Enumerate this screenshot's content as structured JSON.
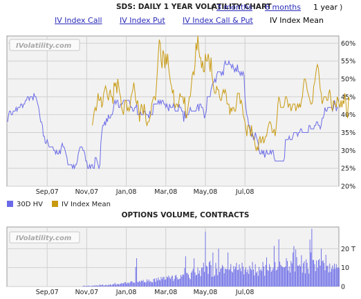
{
  "header": {
    "title": "SDS: DAILY 1 YEAR VOLATILITY CHART",
    "paren_open": "(",
    "paren_close": ")",
    "range_3m": "3 months",
    "range_6m": "6 months",
    "range_1y": "1 year"
  },
  "tabs": {
    "call": "IV Index Call",
    "put": "IV Index Put",
    "callput": "IV Index Call & Put",
    "mean": "IV Index Mean"
  },
  "watermark": "IVolatility.com",
  "colors": {
    "hv": "#6a6ae8",
    "iv": "#c89a10",
    "bar": "#6a6ae8",
    "panel": "#f2f2f2",
    "grid": "#cfcfcf"
  },
  "chart_data": [
    {
      "type": "line",
      "x_tick_labels": [
        "Sep,07",
        "Nov,07",
        "Jan,08",
        "Mar,08",
        "May,08",
        "Jul,08"
      ],
      "y_tick_labels": [
        "20%",
        "25%",
        "30%",
        "35%",
        "40%",
        "45%",
        "50%",
        "55%",
        "60%"
      ],
      "ylim": [
        20,
        62
      ],
      "y_unit": "%",
      "grid": true,
      "legend_position": "bottom-left",
      "series": [
        {
          "name": "30D HV",
          "color": "#6a6ae8",
          "values": [
            38,
            40,
            41,
            41,
            40,
            40,
            41,
            41,
            41,
            42,
            41,
            42,
            42,
            42,
            43,
            43,
            42,
            43,
            43,
            44,
            44,
            45,
            45,
            44,
            45,
            45,
            45,
            44,
            46,
            45,
            45,
            44,
            43,
            42,
            40,
            38,
            38,
            37,
            34,
            34,
            32,
            32,
            33,
            32,
            31,
            31,
            31,
            31,
            31,
            30,
            30,
            29,
            30,
            29,
            29,
            30,
            29,
            31,
            32,
            31,
            31,
            30,
            29,
            28,
            26,
            26,
            26,
            26,
            26,
            25,
            26,
            25,
            26,
            26,
            27,
            29,
            30,
            31,
            31,
            31,
            30,
            30,
            29,
            27,
            27,
            25,
            25,
            26,
            25,
            26,
            26,
            25,
            25,
            28,
            28,
            27,
            26,
            25,
            26,
            32,
            35,
            37,
            37,
            38,
            37,
            39,
            38,
            40,
            39,
            39,
            40,
            40,
            41,
            43,
            44,
            43,
            44,
            44,
            42,
            42,
            43,
            43,
            43,
            44,
            44,
            44,
            44,
            44,
            44,
            44,
            43,
            42,
            42,
            41,
            41,
            42,
            42,
            43,
            40,
            40,
            40,
            41,
            40,
            40,
            40,
            41,
            41,
            40,
            40,
            40,
            39,
            41,
            40,
            40,
            40,
            43,
            43,
            43,
            43,
            43,
            44,
            43,
            44,
            43,
            44,
            44,
            43,
            43,
            42,
            43,
            42,
            41,
            43,
            42,
            42,
            42,
            43,
            42,
            41,
            41,
            41,
            41,
            43,
            42,
            42,
            41,
            41,
            38,
            41,
            39,
            40,
            40,
            40,
            41,
            42,
            41,
            41,
            41,
            41,
            41,
            41,
            42,
            43,
            41,
            43,
            43,
            42,
            42,
            41,
            39,
            40,
            41,
            45,
            45,
            45,
            45,
            47,
            48,
            49,
            49,
            50,
            49,
            51,
            52,
            52,
            52,
            52,
            51,
            52,
            51,
            54,
            55,
            54,
            54,
            54,
            55,
            54,
            54,
            53,
            54,
            53,
            52,
            53,
            52,
            54,
            52,
            52,
            51,
            52,
            51,
            52,
            51,
            45,
            42,
            40,
            39,
            37,
            37,
            35,
            34,
            35,
            33,
            33,
            35,
            34,
            33,
            32,
            30,
            29,
            29,
            30,
            29,
            30,
            28,
            29,
            30,
            29,
            29,
            29,
            30,
            29,
            30,
            30,
            28,
            27,
            27,
            27,
            27,
            27,
            27,
            27,
            27,
            27,
            27,
            28,
            33,
            33,
            33,
            33,
            34,
            33,
            33,
            33,
            34,
            35,
            35,
            35,
            35,
            34,
            35,
            35,
            36,
            36,
            35,
            35,
            35,
            35,
            35,
            35,
            35,
            37,
            37,
            36,
            36,
            36,
            36,
            37,
            37,
            38,
            38,
            37,
            37,
            36,
            37,
            39,
            39,
            40,
            42,
            41,
            41,
            42,
            42,
            42,
            42,
            42,
            41,
            42,
            44,
            43,
            41,
            42,
            42
          ]
        },
        {
          "name": "IV Index Mean",
          "color": "#c89a10",
          "values": [
            null,
            null,
            null,
            null,
            null,
            null,
            null,
            null,
            null,
            null,
            null,
            null,
            null,
            null,
            null,
            null,
            null,
            null,
            null,
            null,
            null,
            null,
            null,
            null,
            null,
            null,
            null,
            null,
            null,
            null,
            null,
            null,
            null,
            null,
            null,
            null,
            null,
            null,
            null,
            null,
            null,
            null,
            null,
            null,
            null,
            null,
            null,
            null,
            null,
            null,
            null,
            null,
            null,
            null,
            null,
            null,
            null,
            null,
            null,
            null,
            null,
            null,
            null,
            null,
            null,
            null,
            null,
            null,
            null,
            null,
            null,
            null,
            null,
            null,
            null,
            null,
            null,
            null,
            null,
            null,
            null,
            null,
            null,
            null,
            null,
            null,
            null,
            null,
            null,
            null,
            37,
            39,
            41,
            42,
            41,
            43,
            46,
            44,
            44,
            45,
            42,
            43,
            46,
            47,
            48,
            47,
            45,
            44,
            46,
            47,
            45,
            45,
            43,
            49,
            48,
            49,
            46,
            50,
            48,
            46,
            45,
            42,
            41,
            40,
            43,
            44,
            44,
            41,
            42,
            41,
            42,
            45,
            46,
            47,
            49,
            47,
            44,
            43,
            44,
            42,
            38,
            41,
            43,
            42,
            40,
            43,
            41,
            38,
            37,
            38,
            38,
            39,
            40,
            43,
            44,
            45,
            45,
            44,
            48,
            52,
            57,
            61,
            60,
            55,
            53,
            58,
            57,
            53,
            57,
            54,
            57,
            53,
            51,
            49,
            48,
            46,
            47,
            43,
            42,
            43,
            43,
            42,
            44,
            46,
            45,
            45,
            45,
            43,
            45,
            40,
            39,
            41,
            43,
            45,
            45,
            48,
            51,
            52,
            51,
            54,
            60,
            58,
            62,
            58,
            56,
            56,
            53,
            55,
            52,
            52,
            57,
            55,
            55,
            57,
            55,
            52,
            56,
            51,
            49,
            47,
            46,
            46,
            48,
            47,
            47,
            45,
            44,
            44,
            46,
            47,
            46,
            47,
            46,
            43,
            43,
            43,
            40,
            42,
            41,
            42,
            42,
            41,
            41,
            43,
            46,
            46,
            46,
            43,
            44,
            43,
            40,
            39,
            38,
            36,
            34,
            37,
            37,
            36,
            34,
            37,
            34,
            34,
            33,
            31,
            30,
            31,
            30,
            33,
            34,
            32,
            33,
            34,
            32,
            33,
            34,
            34,
            36,
            37,
            38,
            38,
            37,
            35,
            35,
            36,
            34,
            36,
            39,
            43,
            45,
            44,
            42,
            42,
            42,
            42,
            43,
            45,
            45,
            44,
            42,
            43,
            43,
            41,
            42,
            43,
            43,
            43,
            41,
            42,
            43,
            42,
            43,
            42,
            44,
            45,
            48,
            50,
            50,
            49,
            47,
            46,
            45,
            44,
            43,
            43,
            44,
            48,
            49,
            51,
            53,
            54,
            53,
            50,
            47,
            46,
            43,
            44,
            45,
            45,
            45,
            44,
            44,
            46,
            47,
            45,
            42,
            41,
            44,
            43,
            43,
            42,
            45,
            44,
            43,
            42,
            44,
            42,
            44,
            43,
            46,
            44,
            40,
            39,
            45,
            44
          ]
        }
      ]
    },
    {
      "type": "bar",
      "title": "OPTIONS VOLUME, CONTRACTS",
      "x_tick_labels": [
        "Sep,07",
        "Nov,07",
        "Jan,08",
        "Mar,08",
        "May,08",
        "Jul,08"
      ],
      "y_tick_labels": [
        "0",
        "10",
        "20 T"
      ],
      "ylim": [
        0,
        30
      ],
      "y_unit": "T",
      "grid": true,
      "series": [
        {
          "name": "Volume",
          "color": "#6a6ae8",
          "values": [
            0,
            0,
            0,
            0,
            0,
            0,
            0,
            0,
            0,
            0,
            0,
            0,
            0,
            0,
            0,
            0,
            0,
            0,
            0,
            0,
            0,
            0,
            0,
            0,
            0,
            0,
            0,
            0,
            0,
            0,
            0,
            0,
            0,
            0,
            0,
            0,
            0,
            0,
            0,
            0,
            0,
            0,
            0,
            0,
            0,
            0,
            0,
            0,
            0,
            0,
            0,
            0,
            0,
            0,
            0,
            0,
            0,
            0,
            0,
            0,
            0,
            0,
            0,
            0,
            0,
            0,
            0,
            0,
            0,
            0,
            0,
            0,
            0,
            0,
            0,
            0,
            0,
            0,
            0,
            0,
            0.3,
            0.5,
            0.3,
            0.3,
            0.4,
            0.3,
            0.6,
            0.3,
            0.3,
            0.3,
            0.5,
            0.4,
            0.6,
            0.4,
            0.7,
            0.5,
            0.6,
            0.5,
            1.1,
            0.7,
            0.8,
            1.1,
            0.5,
            0.6,
            0.8,
            0.9,
            0.5,
            0.9,
            1.0,
            1.2,
            0.7,
            1.0,
            1.2,
            1.4,
            1.9,
            1.0,
            1.2,
            1.4,
            1.2,
            1.2,
            1.5,
            1.9,
            1.7,
            1.6,
            2.2,
            2.4,
            1.5,
            1.9,
            2.1,
            1.7,
            2.3,
            2.8,
            2.8,
            2.2,
            2.1,
            2.0,
            10.3,
            15.0,
            2.5,
            2.3,
            3.0,
            2.5,
            3.2,
            2.9,
            3.5,
            2.3,
            2.4,
            2.1,
            3.8,
            2.8,
            3.7,
            2.5,
            2.9,
            2.3,
            2.2,
            4.0,
            4.2,
            2.5,
            4.4,
            3.2,
            4.8,
            3.6,
            3.2,
            5.1,
            3.9,
            5.0,
            5.1,
            3.6,
            3.8,
            5.3,
            4.8,
            5.8,
            4.8,
            4.0,
            5.3,
            5.8,
            3.0,
            4.1,
            5.8,
            6.1,
            4.8,
            3.7,
            4.0,
            4.2,
            6.1,
            5.3,
            6.5,
            6.2,
            9.8,
            16.0,
            7.2,
            7.1,
            6.3,
            4.6,
            3.8,
            7.3,
            8.2,
            9.4,
            14.9,
            7.5,
            5.8,
            6.3,
            10.1,
            6.8,
            8.5,
            5.5,
            10.0,
            10.0,
            12.6,
            7.8,
            29.0,
            11.0,
            10.5,
            6.7,
            12.8,
            13.6,
            11.3,
            5.2,
            18.0,
            5.3,
            6.0,
            12.5,
            9.5,
            6.0,
            20.0,
            7.7,
            9.4,
            9.7,
            11.4,
            10.5,
            7.0,
            9.5,
            9.2,
            9.3,
            18.0,
            8.8,
            9.3,
            11.9,
            8.0,
            7.5,
            10.9,
            9.2,
            10.4,
            12.5,
            8.8,
            8.8,
            11.7,
            9.6,
            8.1,
            12.6,
            10.5,
            6.4,
            9.0,
            10.1,
            7.6,
            9.0,
            6.7,
            11.0,
            9.5,
            8.7,
            13.0,
            9.0,
            5.9,
            11.8,
            7.3,
            8.0,
            5.7,
            10.4,
            8.6,
            9.3,
            8.2,
            13.0,
            10.6,
            5.7,
            11.4,
            15.4,
            8.8,
            8.3,
            11.8,
            10.4,
            7.8,
            8.7,
            9.9,
            21.5,
            12.9,
            8.5,
            9.0,
            10.4,
            25.0,
            13.2,
            11.5,
            10.8,
            10.4,
            10.1,
            10.2,
            10.6,
            15.0,
            13.5,
            8.5,
            10.6,
            7.4,
            13.5,
            12.3,
            18.0,
            21.4,
            7.9,
            19.6,
            15.5,
            11.0,
            10.9,
            11.6,
            10.7,
            16.6,
            7.4,
            12.3,
            13.4,
            7.0,
            14.4,
            12.6,
            9.4,
            6.8,
            24.8,
            18.0,
            30.5,
            14.1,
            14.0,
            11.8,
            8.2,
            13.8,
            9.9,
            13.9,
            14.6,
            11.1,
            20.0,
            13.4,
            13.9,
            12.5,
            8.6,
            16.8,
            10.8,
            11.1,
            7.5,
            12.2,
            7.8,
            9.6,
            11.2,
            9.3,
            12.1,
            9.5,
            11.9,
            9.8,
            10.2,
            9.9
          ]
        }
      ]
    }
  ],
  "legend": {
    "hv": "30D HV",
    "iv": "IV Index Mean"
  }
}
